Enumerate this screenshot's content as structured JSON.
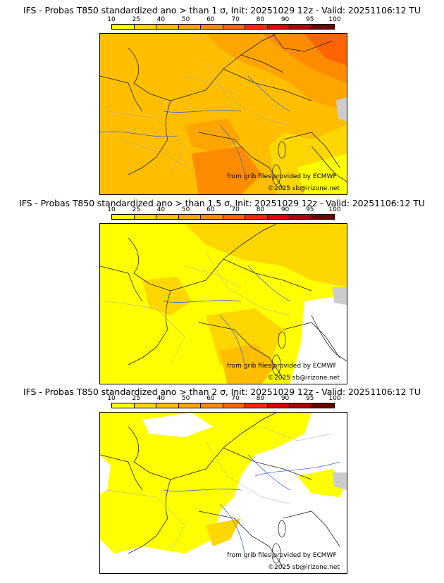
{
  "colorbar": {
    "ticks": [
      "10",
      "25",
      "40",
      "50",
      "60",
      "70",
      "80",
      "90",
      "95",
      "100"
    ],
    "colors": [
      "#ffff00",
      "#ffd700",
      "#ffbf00",
      "#ffa500",
      "#ff8c00",
      "#ff6400",
      "#ff2800",
      "#e00000",
      "#b00000",
      "#700000"
    ]
  },
  "panels": [
    {
      "title": "IFS - Probas T850  standardized ano > than 1 σ, Init: 20251029 12z - Valid: 20251106:12 TU",
      "threshold_sigma": 1
    },
    {
      "title": "IFS - Probas T850  standardized ano > than 1.5 σ, Init: 20251029 12z - Valid: 20251106:12 TU",
      "threshold_sigma": 1.5
    },
    {
      "title": "IFS - Probas T850  standardized ano > than 2 σ, Init: 20251029 12z - Valid: 20251106:12 TU",
      "threshold_sigma": 2
    }
  ],
  "credits": {
    "source": "from grib files provided by ECMWF",
    "copyright": "©2025 sb@irizone.net"
  }
}
